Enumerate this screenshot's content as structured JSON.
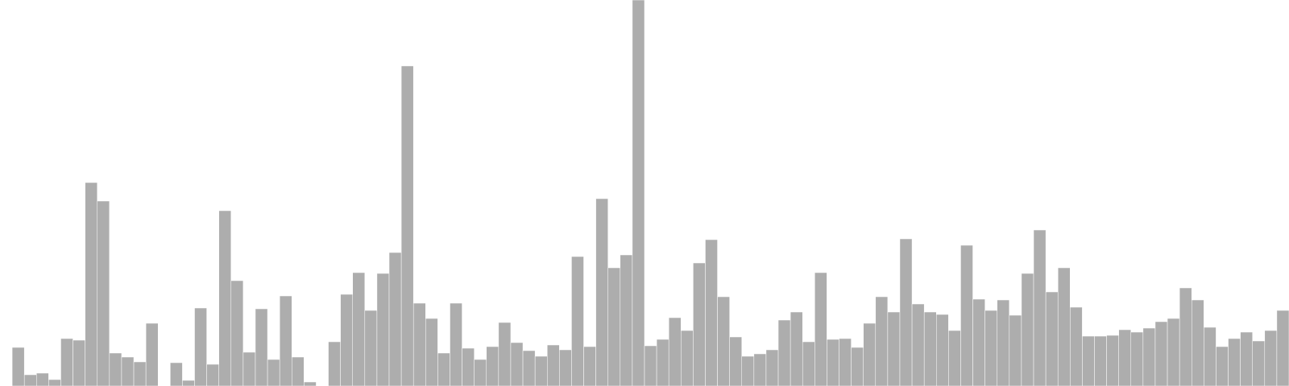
{
  "chart_data": {
    "type": "bar",
    "title": "",
    "xlabel": "",
    "ylabel": "",
    "ylim": [
      0,
      480
    ],
    "grid": false,
    "legend": "none",
    "bar_color": "#adadad",
    "values": [
      0,
      48,
      14,
      16,
      8,
      59,
      57,
      253,
      230,
      41,
      36,
      30,
      78,
      0,
      29,
      7,
      97,
      27,
      218,
      131,
      42,
      96,
      33,
      112,
      36,
      5,
      0,
      55,
      114,
      141,
      94,
      140,
      166,
      398,
      103,
      84,
      41,
      103,
      47,
      33,
      49,
      79,
      54,
      44,
      37,
      51,
      45,
      161,
      49,
      233,
      147,
      163,
      480,
      50,
      58,
      85,
      69,
      153,
      182,
      111,
      61,
      37,
      40,
      45,
      82,
      92,
      55,
      141,
      58,
      59,
      48,
      78,
      111,
      92,
      183,
      102,
      92,
      89,
      69,
      175,
      108,
      94,
      107,
      88,
      140,
      194,
      117,
      147,
      98,
      62,
      62,
      63,
      70,
      67,
      72,
      80,
      84,
      122,
      107,
      73,
      49,
      59,
      67,
      56,
      69,
      94
    ]
  }
}
